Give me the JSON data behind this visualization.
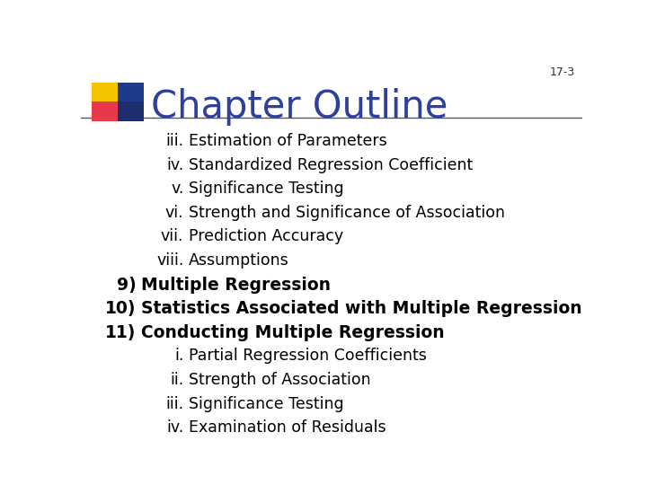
{
  "slide_number": "17-3",
  "title": "Chapter Outline",
  "title_color": "#2E4099",
  "background_color": "#FFFFFF",
  "slide_number_color": "#333333",
  "line_color": "#555555",
  "body_color": "#000000",
  "body_lines": [
    {
      "indent": 2,
      "label": "iii.",
      "text": "Estimation of Parameters"
    },
    {
      "indent": 2,
      "label": "iv.",
      "text": "Standardized Regression Coefficient"
    },
    {
      "indent": 2,
      "label": "v.",
      "text": "Significance Testing"
    },
    {
      "indent": 2,
      "label": "vi.",
      "text": "Strength and Significance of Association"
    },
    {
      "indent": 2,
      "label": "vii.",
      "text": "Prediction Accuracy"
    },
    {
      "indent": 2,
      "label": "viii.",
      "text": "Assumptions"
    },
    {
      "indent": 1,
      "label": "9)",
      "text": "Multiple Regression"
    },
    {
      "indent": 1,
      "label": "10)",
      "text": "Statistics Associated with Multiple Regression"
    },
    {
      "indent": 1,
      "label": "11)",
      "text": "Conducting Multiple Regression"
    },
    {
      "indent": 2,
      "label": "i.",
      "text": "Partial Regression Coefficients"
    },
    {
      "indent": 2,
      "label": "ii.",
      "text": "Strength of Association"
    },
    {
      "indent": 2,
      "label": "iii.",
      "text": "Significance Testing"
    },
    {
      "indent": 2,
      "label": "iv.",
      "text": "Examination of Residuals"
    }
  ],
  "logo_colors": {
    "yellow": "#F5C400",
    "red": "#E8394A",
    "blue": "#1E3A8A",
    "dark_blue": "#1E2D6B"
  }
}
